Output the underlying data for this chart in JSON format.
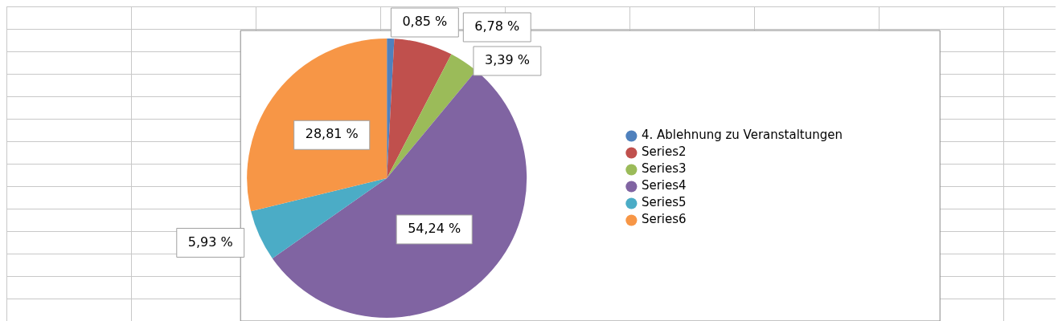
{
  "chart_data": {
    "type": "pie",
    "categories": [
      "4. Ablehnung zu Veranstaltungen",
      "Series2",
      "Series3",
      "Series4",
      "Series5",
      "Series6"
    ],
    "values": [
      0.85,
      6.78,
      3.39,
      54.24,
      5.93,
      28.81
    ],
    "colors": [
      "#4f81bd",
      "#c0504d",
      "#9bbb59",
      "#8064a2",
      "#4bacc6",
      "#f79646"
    ],
    "value_labels": [
      "0,85 %",
      "6,78 %",
      "3,39 %",
      "54,24 %",
      "5,93 %",
      "28,81 %"
    ],
    "legend": "right"
  }
}
